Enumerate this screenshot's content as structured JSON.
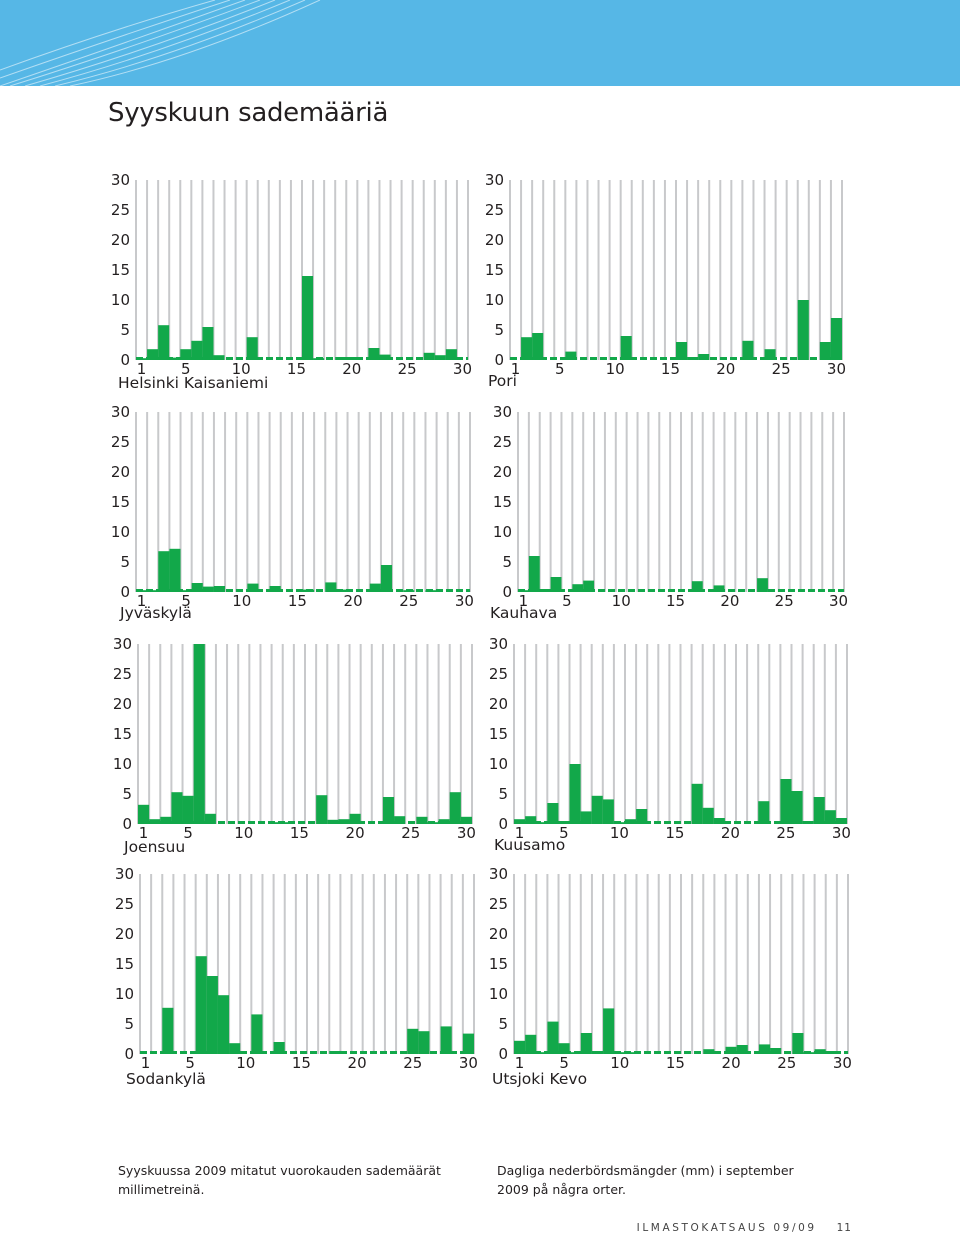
{
  "header": {
    "title": "Syyskuun sademääriä"
  },
  "colors": {
    "banner": "#56b7e6",
    "bar": "#12a84a",
    "grid": "#c8c9cb"
  },
  "axes": {
    "y_ticks": [
      "0",
      "5",
      "10",
      "15",
      "20",
      "25",
      "30"
    ],
    "x_ticks": [
      "1",
      "5",
      "10",
      "15",
      "20",
      "25",
      "30"
    ],
    "y_range": [
      0,
      30
    ],
    "x_range": [
      1,
      30
    ]
  },
  "chart_data": [
    {
      "type": "bar",
      "station": "Helsinki Kaisaniemi",
      "ylim": [
        0,
        30
      ],
      "x": [
        1,
        2,
        3,
        4,
        5,
        6,
        7,
        8,
        9,
        10,
        11,
        12,
        13,
        14,
        15,
        16,
        17,
        18,
        19,
        20,
        21,
        22,
        23,
        24,
        25,
        26,
        27,
        28,
        29,
        30
      ],
      "values": [
        0.3,
        1.8,
        5.8,
        0.4,
        1.8,
        3.2,
        5.5,
        0.8,
        0,
        0,
        3.8,
        0,
        0,
        0,
        0,
        14,
        0.3,
        0,
        0.5,
        0.5,
        0,
        2,
        0.9,
        0,
        0,
        0,
        1.2,
        0.8,
        1.8,
        0
      ]
    },
    {
      "type": "bar",
      "station": "Pori",
      "ylim": [
        0,
        30
      ],
      "x": [
        1,
        2,
        3,
        4,
        5,
        6,
        7,
        8,
        9,
        10,
        11,
        12,
        13,
        14,
        15,
        16,
        17,
        18,
        19,
        20,
        21,
        22,
        23,
        24,
        25,
        26,
        27,
        28,
        29,
        30
      ],
      "values": [
        0,
        3.8,
        4.5,
        0,
        0,
        1.4,
        0,
        0,
        0,
        0,
        4,
        0,
        0,
        0,
        0,
        3,
        0.5,
        1,
        0,
        0,
        0,
        3.2,
        0,
        1.8,
        0,
        0,
        10,
        0,
        3,
        7
      ]
    },
    {
      "type": "bar",
      "station": "Jyväskylä",
      "ylim": [
        0,
        30
      ],
      "x": [
        1,
        2,
        3,
        4,
        5,
        6,
        7,
        8,
        9,
        10,
        11,
        12,
        13,
        14,
        15,
        16,
        17,
        18,
        19,
        20,
        21,
        22,
        23,
        24,
        25,
        26,
        27,
        28,
        29,
        30
      ],
      "values": [
        0.3,
        0.3,
        6.8,
        7.2,
        0.3,
        1.5,
        0.9,
        1,
        0,
        0,
        1.4,
        0,
        1,
        0,
        0,
        0.4,
        0,
        1.6,
        0.4,
        0,
        0,
        1.4,
        4.5,
        0,
        0.3,
        0,
        0.3,
        0,
        0,
        0
      ]
    },
    {
      "type": "bar",
      "station": "Kauhava",
      "ylim": [
        0,
        30
      ],
      "x": [
        1,
        2,
        3,
        4,
        5,
        6,
        7,
        8,
        9,
        10,
        11,
        12,
        13,
        14,
        15,
        16,
        17,
        18,
        19,
        20,
        21,
        22,
        23,
        24,
        25,
        26,
        27,
        28,
        29,
        30
      ],
      "values": [
        0.3,
        6,
        0.5,
        2.5,
        0,
        1.3,
        1.9,
        0,
        0,
        0,
        0,
        0,
        0,
        0,
        0,
        0,
        1.8,
        0,
        1.1,
        0,
        0,
        0,
        2.3,
        0,
        0,
        0,
        0,
        0,
        0,
        0
      ]
    },
    {
      "type": "bar",
      "station": "Joensuu",
      "ylim": [
        0,
        30
      ],
      "x": [
        1,
        2,
        3,
        4,
        5,
        6,
        7,
        8,
        9,
        10,
        11,
        12,
        13,
        14,
        15,
        16,
        17,
        18,
        19,
        20,
        21,
        22,
        23,
        24,
        25,
        26,
        27,
        28,
        29,
        30
      ],
      "values": [
        3.2,
        0.8,
        1.2,
        5.3,
        4.7,
        30,
        1.7,
        0,
        0,
        0,
        0,
        0,
        0.3,
        0.3,
        0,
        0,
        4.8,
        0.7,
        0.8,
        1.7,
        0,
        0,
        4.5,
        1.3,
        0,
        1.2,
        0.3,
        0.8,
        5.3,
        1.2
      ]
    },
    {
      "type": "bar",
      "station": "Kuusamo",
      "ylim": [
        0,
        30
      ],
      "x": [
        1,
        2,
        3,
        4,
        5,
        6,
        7,
        8,
        9,
        10,
        11,
        12,
        13,
        14,
        15,
        16,
        17,
        18,
        19,
        20,
        21,
        22,
        23,
        24,
        25,
        26,
        27,
        28,
        29,
        30
      ],
      "values": [
        0.8,
        1.3,
        0.3,
        3.5,
        0.5,
        10,
        2.1,
        4.7,
        4.1,
        0.3,
        0.8,
        2.5,
        0,
        0,
        0,
        0,
        6.7,
        2.7,
        1,
        0,
        0,
        0,
        3.8,
        0,
        7.5,
        5.5,
        0.5,
        4.5,
        2.3,
        1
      ]
    },
    {
      "type": "bar",
      "station": "Sodankylä",
      "ylim": [
        0,
        30
      ],
      "x": [
        1,
        2,
        3,
        4,
        5,
        6,
        7,
        8,
        9,
        10,
        11,
        12,
        13,
        14,
        15,
        16,
        17,
        18,
        19,
        20,
        21,
        22,
        23,
        24,
        25,
        26,
        27,
        28,
        29,
        30
      ],
      "values": [
        0,
        0,
        7.7,
        0,
        0,
        16.3,
        13,
        9.8,
        1.8,
        0,
        6.6,
        0,
        2,
        0,
        0,
        0,
        0,
        0.5,
        0,
        0,
        0,
        0,
        0,
        0,
        4.2,
        3.8,
        0,
        4.6,
        0,
        3.4
      ]
    },
    {
      "type": "bar",
      "station": "Utsjoki Kevo",
      "ylim": [
        0,
        30
      ],
      "x": [
        1,
        2,
        3,
        4,
        5,
        6,
        7,
        8,
        9,
        10,
        11,
        12,
        13,
        14,
        15,
        16,
        17,
        18,
        19,
        20,
        21,
        22,
        23,
        24,
        25,
        26,
        27,
        28,
        29,
        30
      ],
      "values": [
        2.2,
        3.2,
        0.3,
        5.4,
        1.8,
        0.3,
        3.5,
        0.5,
        7.6,
        0.3,
        0.3,
        0,
        0,
        0,
        0,
        0,
        0,
        0.8,
        0,
        1.2,
        1.5,
        0,
        1.6,
        1,
        0,
        3.5,
        0.3,
        0.8,
        0.5,
        0
      ]
    }
  ],
  "captions": {
    "fi": "Syyskuussa 2009 mitatut vuorokauden sademäärät  millimetreinä.",
    "sv": "Dagliga nederbördsmängder (mm) i september 2009 på några orter."
  },
  "footer": {
    "publication": "ILMASTOKATSAUS 09/09",
    "page": "11"
  }
}
